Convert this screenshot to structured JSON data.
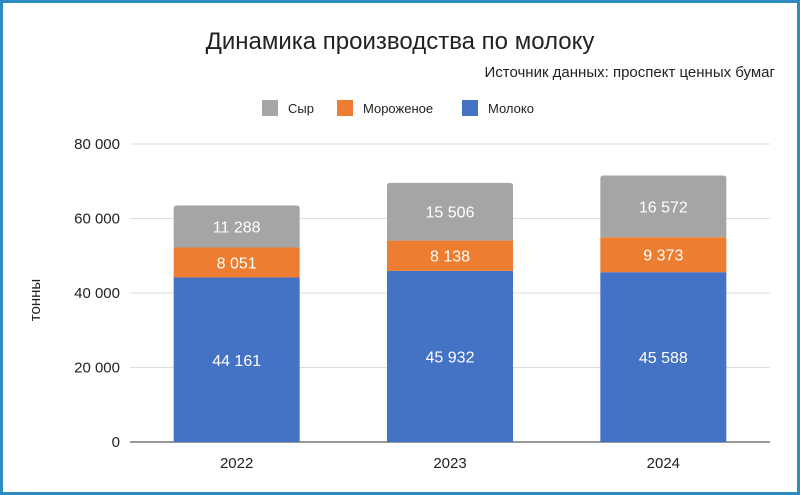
{
  "chart_data": {
    "type": "bar",
    "stacked": true,
    "title": "Динамика производства по молоку",
    "subtitle": "Источник данных: проспект ценных бумаг",
    "ylabel": "тонны",
    "xlabel": "",
    "categories": [
      "2022",
      "2023",
      "2024"
    ],
    "series": [
      {
        "name": "Молоко",
        "color": "#4472c4",
        "values": [
          44161,
          45932,
          45588
        ],
        "labels": [
          "44 161",
          "45 932",
          "45 588"
        ]
      },
      {
        "name": "Мороженое",
        "color": "#ed7d31",
        "values": [
          8051,
          8138,
          9373
        ],
        "labels": [
          "8 051",
          "8 138",
          "9 373"
        ]
      },
      {
        "name": "Сыр",
        "color": "#a5a5a5",
        "values": [
          11288,
          15506,
          16572
        ],
        "labels": [
          "11 288",
          "15 506",
          "16 572"
        ]
      }
    ],
    "legend_order": [
      "Сыр",
      "Мороженое",
      "Молоко"
    ],
    "legend_position": "top",
    "ylim": [
      0,
      80000
    ],
    "yticks": [
      0,
      20000,
      40000,
      60000,
      80000
    ],
    "ytick_labels": [
      "0",
      "20 000",
      "40 000",
      "60 000",
      "80 000"
    ],
    "grid": true
  }
}
